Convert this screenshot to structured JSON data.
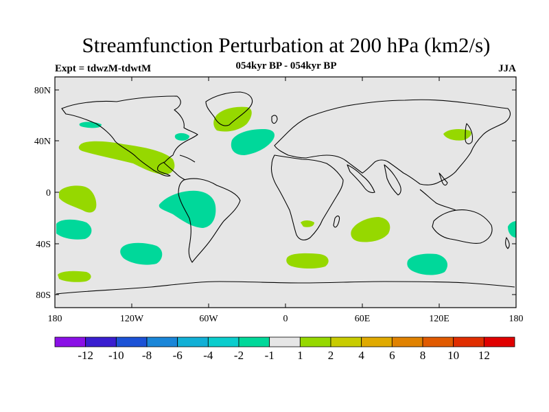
{
  "title": "Streamfunction Perturbation at 200 hPa (km2/s)",
  "subtitle": "054kyr BP - 054kyr BP",
  "left_label": "Expt = tdwzM-tdwtM",
  "right_label": "JJA",
  "map": {
    "projection": "cylindrical equidistant",
    "lon_range": [
      -180,
      180
    ],
    "lat_range": [
      -90,
      90
    ],
    "background_color": "#e6e6e6",
    "lon_ticks": [
      "180",
      "120W",
      "60W",
      "0",
      "60E",
      "120E",
      "180"
    ],
    "lat_ticks": [
      "80N",
      "40N",
      "0",
      "40S",
      "80S"
    ],
    "continents": "coastline outlines (black)"
  },
  "colorbar": {
    "colors": [
      "#8a10e6",
      "#3a1ed0",
      "#1c52d6",
      "#1a86d8",
      "#12b0d6",
      "#0bcdcd",
      "#00d89a",
      "#e6e6e6",
      "#96d800",
      "#c8cc00",
      "#e0aa00",
      "#e08200",
      "#e05a00",
      "#e02e00",
      "#e00000"
    ],
    "labels": [
      "-12",
      "-10",
      "-8",
      "-6",
      "-4",
      "-2",
      "-1",
      "1",
      "2",
      "4",
      "6",
      "8",
      "10",
      "12"
    ]
  },
  "anomalies": [
    {
      "region": "North Pacific (east of Japan)",
      "sign": "positive",
      "color": "#96d800"
    },
    {
      "region": "Subtropical North Pacific / Mexico",
      "sign": "positive",
      "color": "#96d800"
    },
    {
      "region": "Greenland / North Atlantic",
      "sign": "positive",
      "color": "#96d800"
    },
    {
      "region": "Central Atlantic",
      "sign": "negative",
      "color": "#00d89a"
    },
    {
      "region": "Southeast Pacific / South America",
      "sign": "negative",
      "color": "#00d89a"
    },
    {
      "region": "Southern Indian Ocean",
      "sign": "positive",
      "color": "#96d800"
    },
    {
      "region": "South Indian Ocean (south of Australia)",
      "sign": "negative",
      "color": "#00d89a"
    },
    {
      "region": "South Atlantic",
      "sign": "positive",
      "color": "#96d800"
    },
    {
      "region": "South Pacific",
      "sign": "negative",
      "color": "#00d89a"
    }
  ]
}
